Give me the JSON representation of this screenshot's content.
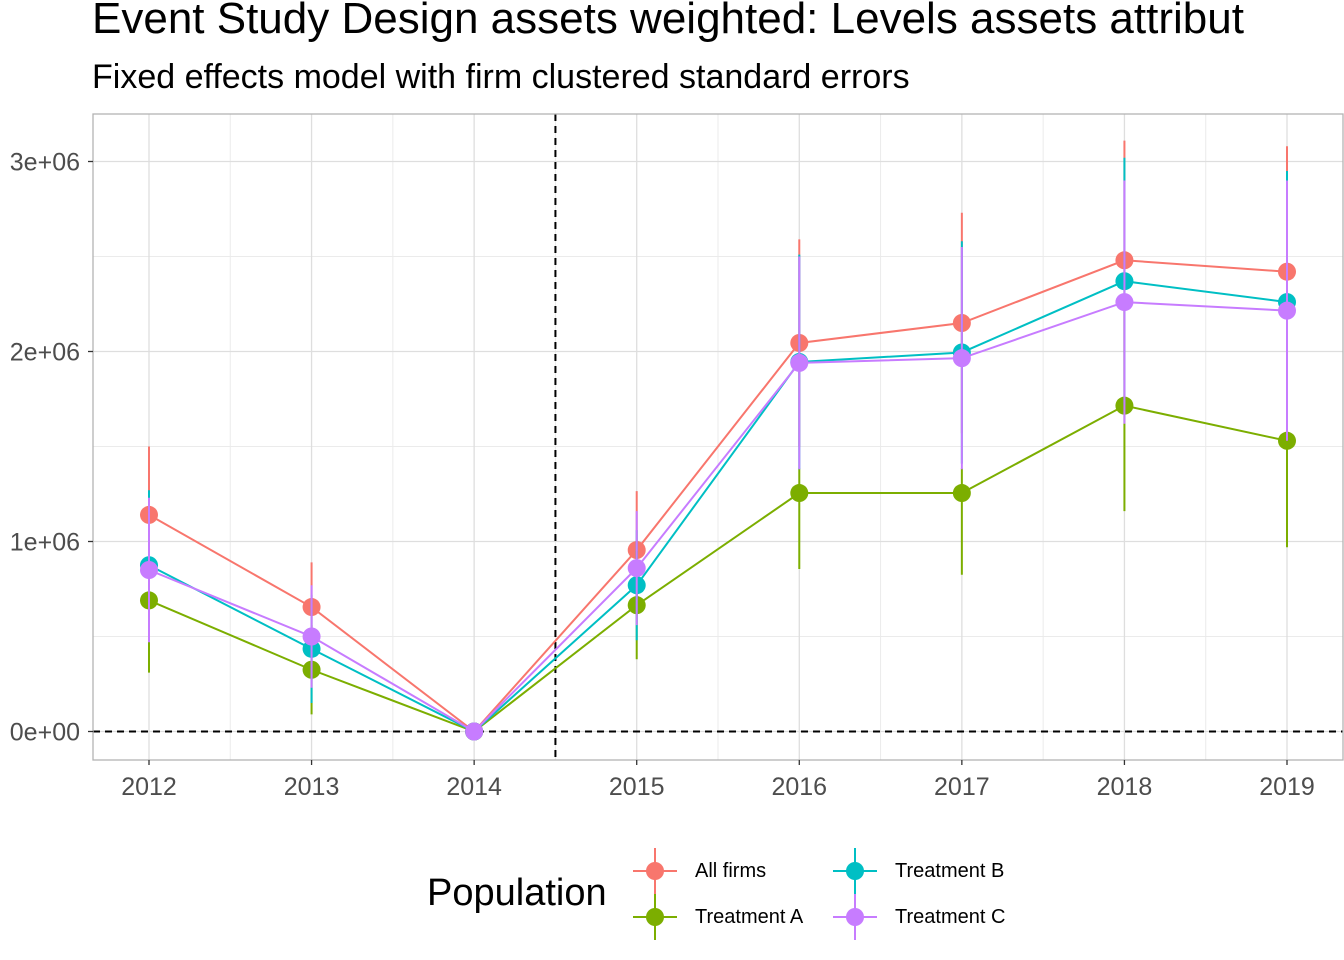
{
  "title": "Event Study Design assets weighted: Levels assets attribut",
  "subtitle": "Fixed effects model with firm clustered standard errors",
  "legend": {
    "title": "Population",
    "position": "bottom"
  },
  "chart_data": {
    "type": "line",
    "title": "Event Study Design assets weighted: Levels assets attribut",
    "subtitle": "Fixed effects model with firm clustered standard errors",
    "xlabel": "",
    "ylabel": "",
    "categories": [
      "2012",
      "2013",
      "2014",
      "2015",
      "2016",
      "2017",
      "2018",
      "2019"
    ],
    "ylim": [
      -150000,
      3250000
    ],
    "y_ticks": [
      0,
      1000000,
      2000000,
      3000000
    ],
    "y_tick_labels": [
      "0e+00",
      "1e+06",
      "2e+06",
      "3e+06"
    ],
    "grid": true,
    "reference_lines": {
      "horizontal_y": 0,
      "vertical_x_between": [
        "2014",
        "2015"
      ],
      "style": "dashed"
    },
    "series": [
      {
        "name": "All firms",
        "color": "#F8766D",
        "values": [
          1140000,
          655000,
          0,
          955000,
          2045000,
          2150000,
          2480000,
          2420000
        ],
        "lower": [
          780000,
          420000,
          0,
          640000,
          1500000,
          1570000,
          1850000,
          1760000
        ],
        "upper": [
          1500000,
          890000,
          0,
          1265000,
          2590000,
          2730000,
          3110000,
          3080000
        ]
      },
      {
        "name": "Treatment A",
        "color": "#7CAE00",
        "values": [
          690000,
          325000,
          0,
          665000,
          1255000,
          1255000,
          1715000,
          1530000
        ],
        "lower": [
          310000,
          90000,
          0,
          380000,
          855000,
          825000,
          1160000,
          970000
        ],
        "upper": [
          1070000,
          560000,
          0,
          950000,
          1385000,
          1385000,
          2270000,
          2090000
        ]
      },
      {
        "name": "Treatment B",
        "color": "#00BFC4",
        "values": [
          875000,
          435000,
          0,
          770000,
          1945000,
          1995000,
          2370000,
          2260000
        ],
        "lower": [
          480000,
          150000,
          0,
          480000,
          1380000,
          1410000,
          1720000,
          1570000
        ],
        "upper": [
          1270000,
          720000,
          0,
          1060000,
          2510000,
          2580000,
          3020000,
          2950000
        ]
      },
      {
        "name": "Treatment C",
        "color": "#C77CFF",
        "values": [
          850000,
          500000,
          0,
          860000,
          1940000,
          1965000,
          2260000,
          2215000
        ],
        "lower": [
          470000,
          230000,
          0,
          560000,
          1380000,
          1380000,
          1620000,
          1530000
        ],
        "upper": [
          1230000,
          770000,
          0,
          1160000,
          2500000,
          2550000,
          2900000,
          2900000
        ]
      }
    ]
  }
}
